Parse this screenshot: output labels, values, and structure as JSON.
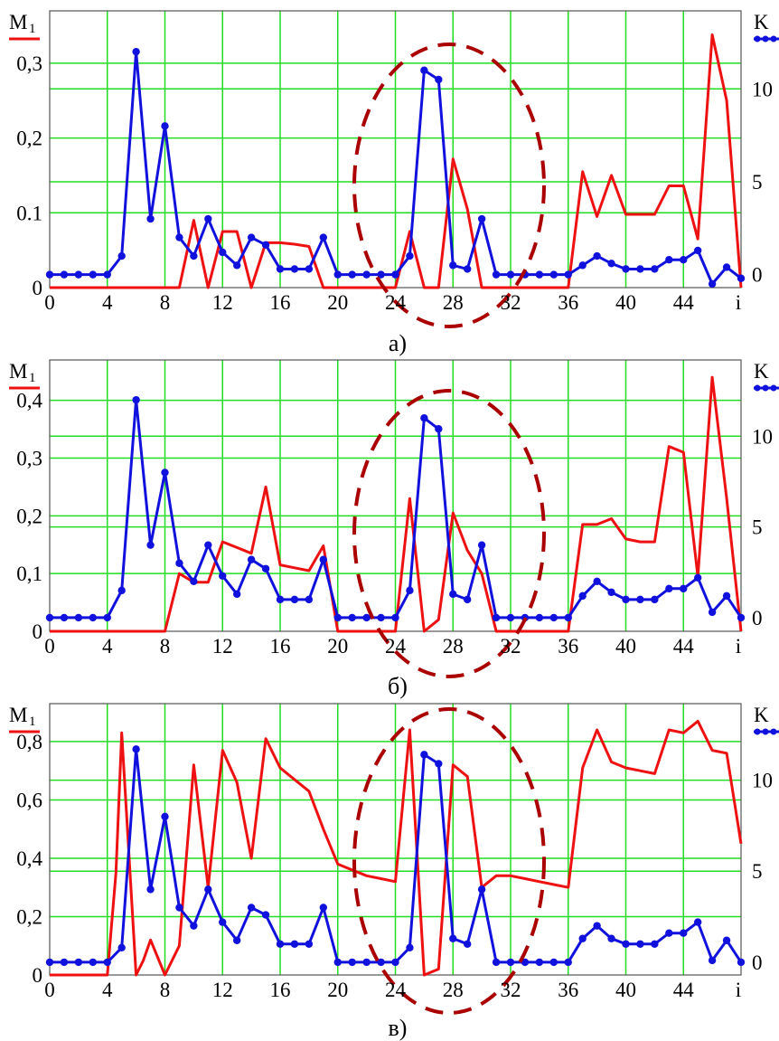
{
  "colors": {
    "grid": "#22dd22",
    "m1": "#ee1111",
    "k": "#1111dd",
    "ellipse": "#aa0000",
    "axis": "#555555"
  },
  "chart_data": [
    {
      "type": "line",
      "panel_label": "а)",
      "left_axis_label": "M",
      "left_axis_sub": "1",
      "right_axis_label": "K",
      "x_axis_end_label": "i",
      "x_ticks": [
        "0",
        "4",
        "8",
        "12",
        "16",
        "20",
        "24",
        "28",
        "32",
        "36",
        "40",
        "44"
      ],
      "x_tick_values": [
        0,
        4,
        8,
        12,
        16,
        20,
        24,
        28,
        32,
        36,
        40,
        44
      ],
      "y_left_ticks": [
        "0",
        "0.1",
        "0,2",
        "0,3"
      ],
      "y_left_tick_values": [
        0,
        0.1,
        0.2,
        0.3
      ],
      "y_right_ticks": [
        "0",
        "5",
        "10"
      ],
      "y_right_tick_values": [
        0,
        5,
        10
      ],
      "xlim": [
        0,
        48
      ],
      "ylim_left": [
        0,
        0.37
      ],
      "ylim_right": [
        -0.7,
        14.2
      ],
      "grid": true,
      "series": [
        {
          "axis": "left",
          "markers": false,
          "color_key": "m1",
          "x": [
            0,
            1,
            2,
            3,
            4,
            5,
            6,
            7,
            8,
            9,
            10,
            11,
            12,
            13,
            14,
            15,
            16,
            17,
            18,
            19,
            20,
            21,
            22,
            23,
            24,
            25,
            26,
            27,
            28,
            29,
            30,
            31,
            32,
            33,
            34,
            35,
            36,
            37,
            38,
            39,
            40,
            41,
            42,
            43,
            44,
            45,
            46,
            47,
            48
          ],
          "y": [
            0,
            0,
            0,
            0,
            0,
            0,
            0,
            0,
            0,
            0,
            0.09,
            0,
            0.075,
            0.075,
            0,
            0.06,
            0.06,
            0.058,
            0.055,
            0,
            0,
            0,
            0,
            0,
            0,
            0.075,
            0,
            0,
            0.172,
            0.105,
            0,
            0,
            0,
            0,
            0,
            0,
            0,
            0.155,
            0.095,
            0.15,
            0.098,
            0.098,
            0.098,
            0.136,
            0.136,
            0.065,
            0.338,
            0.25,
            0
          ]
        },
        {
          "axis": "right",
          "markers": true,
          "color_key": "k",
          "x": [
            0,
            1,
            2,
            3,
            4,
            5,
            6,
            7,
            8,
            9,
            10,
            11,
            12,
            13,
            14,
            15,
            16,
            17,
            18,
            19,
            20,
            21,
            22,
            23,
            24,
            25,
            26,
            27,
            28,
            29,
            30,
            31,
            32,
            33,
            34,
            35,
            36,
            37,
            38,
            39,
            40,
            41,
            42,
            43,
            44,
            45,
            46,
            47,
            48
          ],
          "y": [
            0,
            0,
            0,
            0,
            0,
            1,
            12,
            3,
            8,
            2,
            1,
            3,
            1.2,
            0.5,
            2,
            1.6,
            0.3,
            0.3,
            0.3,
            2,
            0,
            0,
            0,
            0,
            0,
            1,
            11,
            10.5,
            0.5,
            0.3,
            3,
            0,
            0,
            0,
            0,
            0,
            0,
            0.5,
            1,
            0.6,
            0.3,
            0.3,
            0.3,
            0.8,
            0.8,
            1.3,
            -0.5,
            0.4,
            -0.2
          ]
        }
      ]
    },
    {
      "type": "line",
      "panel_label": "б)",
      "left_axis_label": "M",
      "left_axis_sub": "1",
      "right_axis_label": "K",
      "x_axis_end_label": "i",
      "x_ticks": [
        "0",
        "4",
        "8",
        "12",
        "16",
        "20",
        "24",
        "28",
        "32",
        "36",
        "40",
        "44"
      ],
      "x_tick_values": [
        0,
        4,
        8,
        12,
        16,
        20,
        24,
        28,
        32,
        36,
        40,
        44
      ],
      "y_left_ticks": [
        "0",
        "0,1",
        "0,2",
        "0,3",
        "0,4"
      ],
      "y_left_tick_values": [
        0,
        0.1,
        0.2,
        0.3,
        0.4
      ],
      "y_right_ticks": [
        "0",
        "5",
        "10"
      ],
      "y_right_tick_values": [
        0,
        5,
        10
      ],
      "xlim": [
        0,
        48
      ],
      "ylim_left": [
        0,
        0.47
      ],
      "ylim_right": [
        -0.75,
        14.2
      ],
      "grid": true,
      "series": [
        {
          "axis": "left",
          "markers": false,
          "color_key": "m1",
          "x": [
            0,
            1,
            2,
            3,
            4,
            5,
            6,
            7,
            8,
            9,
            10,
            11,
            12,
            13,
            14,
            15,
            16,
            17,
            18,
            19,
            20,
            21,
            22,
            23,
            24,
            25,
            26,
            27,
            28,
            29,
            30,
            31,
            32,
            33,
            34,
            35,
            36,
            37,
            38,
            39,
            40,
            41,
            42,
            43,
            44,
            45,
            46,
            47,
            48
          ],
          "y": [
            0,
            0,
            0,
            0,
            0,
            0,
            0,
            0,
            0,
            0.1,
            0.085,
            0.085,
            0.155,
            0.145,
            0.135,
            0.25,
            0.115,
            0.11,
            0.105,
            0.148,
            0,
            0,
            0,
            0,
            0,
            0.23,
            0,
            0.02,
            0.205,
            0.14,
            0.1,
            0,
            0,
            0,
            0,
            0,
            0,
            0.185,
            0.185,
            0.195,
            0.16,
            0.155,
            0.155,
            0.32,
            0.31,
            0.095,
            0.44,
            0.23,
            0
          ]
        },
        {
          "axis": "right",
          "markers": true,
          "color_key": "k",
          "x": [
            0,
            1,
            2,
            3,
            4,
            5,
            6,
            7,
            8,
            9,
            10,
            11,
            12,
            13,
            14,
            15,
            16,
            17,
            18,
            19,
            20,
            21,
            22,
            23,
            24,
            25,
            26,
            27,
            28,
            29,
            30,
            31,
            32,
            33,
            34,
            35,
            36,
            37,
            38,
            39,
            40,
            41,
            42,
            43,
            44,
            45,
            46,
            47,
            48
          ],
          "y": [
            0,
            0,
            0,
            0,
            0,
            1.5,
            12,
            4,
            8,
            3,
            2,
            4,
            2.3,
            1.3,
            3.2,
            2.7,
            1,
            1,
            1,
            3.2,
            0,
            0,
            0,
            0,
            0,
            1.5,
            11,
            10.4,
            1.3,
            1,
            4,
            0,
            0,
            0,
            0,
            0,
            0,
            1.2,
            2,
            1.4,
            1,
            1,
            1,
            1.6,
            1.6,
            2.2,
            0.3,
            1.2,
            0
          ]
        }
      ]
    },
    {
      "type": "line",
      "panel_label": "в)",
      "left_axis_label": "M",
      "left_axis_sub": "1",
      "right_axis_label": "K",
      "x_axis_end_label": "i",
      "x_ticks": [
        "0",
        "4",
        "8",
        "12",
        "16",
        "20",
        "24",
        "28",
        "32",
        "36",
        "40",
        "44"
      ],
      "x_tick_values": [
        0,
        4,
        8,
        12,
        16,
        20,
        24,
        28,
        32,
        36,
        40,
        44
      ],
      "y_left_ticks": [
        "0",
        "0,2",
        "0,4",
        "0,6",
        "0,8"
      ],
      "y_left_tick_values": [
        0,
        0.2,
        0.4,
        0.6,
        0.8
      ],
      "y_right_ticks": [
        "0",
        "5",
        "10"
      ],
      "y_right_tick_values": [
        0,
        5,
        10
      ],
      "xlim": [
        0,
        48
      ],
      "ylim_left": [
        0,
        0.93
      ],
      "ylim_right": [
        -0.7,
        14.2
      ],
      "grid": true,
      "series": [
        {
          "axis": "left",
          "markers": false,
          "color_key": "m1",
          "x": [
            0,
            1,
            2,
            3,
            4,
            4.6,
            5,
            6,
            6.5,
            7,
            8,
            9,
            10,
            11,
            12,
            13,
            14,
            15,
            16,
            17,
            18,
            19,
            20,
            21,
            22,
            23,
            24,
            25,
            26,
            27,
            28,
            29,
            30,
            31,
            32,
            33,
            34,
            35,
            36,
            37,
            38,
            39,
            40,
            41,
            42,
            43,
            44,
            45,
            46,
            47,
            48
          ],
          "y": [
            0,
            0,
            0,
            0,
            0,
            0.35,
            0.83,
            0,
            0.05,
            0.12,
            0,
            0.1,
            0.72,
            0.3,
            0.77,
            0.66,
            0.4,
            0.81,
            0.71,
            0.67,
            0.63,
            0.5,
            0.38,
            0.36,
            0.34,
            0.33,
            0.32,
            0.84,
            0,
            0.02,
            0.72,
            0.68,
            0.3,
            0.34,
            0.34,
            0.33,
            0.32,
            0.31,
            0.3,
            0.71,
            0.84,
            0.73,
            0.71,
            0.7,
            0.69,
            0.84,
            0.83,
            0.87,
            0.77,
            0.76,
            0.45
          ]
        },
        {
          "axis": "right",
          "markers": true,
          "color_key": "k",
          "x": [
            0,
            1,
            2,
            3,
            4,
            5,
            6,
            7,
            8,
            9,
            10,
            11,
            12,
            13,
            14,
            15,
            16,
            17,
            18,
            19,
            20,
            21,
            22,
            23,
            24,
            25,
            26,
            27,
            28,
            29,
            30,
            31,
            32,
            33,
            34,
            35,
            36,
            37,
            38,
            39,
            40,
            41,
            42,
            43,
            44,
            45,
            46,
            47,
            48
          ],
          "y": [
            0,
            0,
            0,
            0,
            0,
            0.8,
            11.7,
            4,
            8,
            3,
            2,
            4,
            2.2,
            1.2,
            3,
            2.6,
            1,
            1,
            1,
            3,
            0,
            0,
            0,
            0,
            0,
            0.8,
            11.4,
            10.9,
            1.3,
            1,
            4,
            0,
            0,
            0,
            0,
            0,
            0,
            1.3,
            2,
            1.3,
            1,
            1,
            1,
            1.6,
            1.6,
            2.2,
            0.1,
            1.2,
            0
          ]
        }
      ]
    }
  ]
}
